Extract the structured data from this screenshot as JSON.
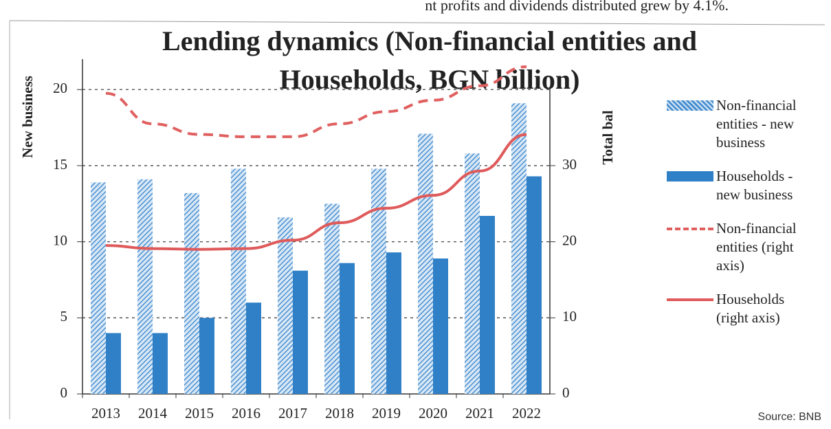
{
  "page_text": "nt profits and dividends distributed grew by 4.1%.",
  "source": "Source: BNB",
  "chart_data": {
    "type": "bar_line",
    "title": [
      "Lending dynamics (Non-financial entities and",
      "Households, BGN billion)"
    ],
    "y_label": "New business",
    "y2_label": "Total bal",
    "categories": [
      "2013",
      "2014",
      "2015",
      "2016",
      "2017",
      "2018",
      "2019",
      "2020",
      "2021",
      "2022"
    ],
    "ylim": [
      0,
      22
    ],
    "yticks": [
      0,
      5,
      10,
      15,
      20
    ],
    "y2lim": [
      0,
      44
    ],
    "y2ticks": [
      0,
      10,
      20,
      30
    ],
    "grid": true,
    "legend": "right",
    "series": [
      {
        "name": "Non-financial entities - new business",
        "kind": "bar",
        "pattern": "hatch",
        "color": "#4a8fd0",
        "values": [
          13.9,
          14.1,
          13.2,
          14.8,
          11.6,
          12.5,
          14.8,
          17.1,
          15.8,
          19.1
        ]
      },
      {
        "name": "Households - new business",
        "kind": "bar",
        "color": "#2f80c6",
        "values": [
          4.0,
          4.0,
          5.0,
          6.0,
          8.1,
          8.6,
          9.3,
          8.9,
          11.7,
          14.3
        ]
      },
      {
        "name": "Non-financial entities (right axis)",
        "kind": "line",
        "dash": true,
        "axis": "y2",
        "color": "#e06060",
        "values": [
          39.5,
          35.5,
          34.1,
          33.8,
          33.8,
          35.5,
          37.1,
          38.6,
          40.5,
          43
        ]
      },
      {
        "name": "Households (right axis)",
        "kind": "line",
        "axis": "y2",
        "color": "#df5a5a",
        "values": [
          19.5,
          19.1,
          19.0,
          19.1,
          20.2,
          22.5,
          24.4,
          26.1,
          29.3,
          34.1
        ]
      }
    ]
  }
}
